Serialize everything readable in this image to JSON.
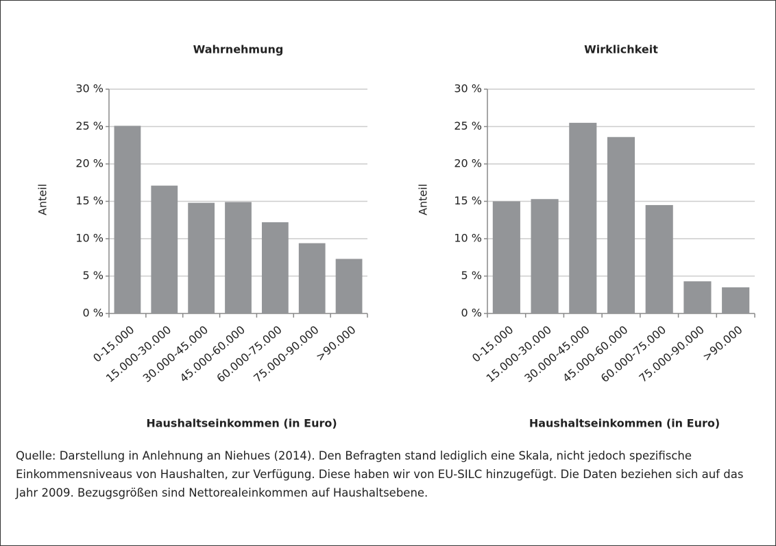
{
  "chart_data": [
    {
      "type": "bar",
      "title": "Wahrnehmung",
      "ylabel": "Anteil",
      "xlabel": "Haushaltseinkommen (in Euro)",
      "categories": [
        "0-15.000",
        "15.000-30.000",
        "30.000-45.000",
        "45.000-60.000",
        "60.000-75.000",
        "75.000-90.000",
        ">90.000"
      ],
      "values": [
        25.1,
        17.1,
        14.8,
        14.9,
        12.2,
        9.4,
        7.3
      ],
      "color": "#939598",
      "ylim": [
        0,
        30
      ],
      "yticks": [
        {
          "value": 0,
          "label": "0 %"
        },
        {
          "value": 5,
          "label": "5 %"
        },
        {
          "value": 10,
          "label": "10 %"
        },
        {
          "value": 15,
          "label": "15 %"
        },
        {
          "value": 20,
          "label": "20 %"
        },
        {
          "value": 25,
          "label": "25 %"
        },
        {
          "value": 30,
          "label": "30 %"
        }
      ],
      "grid": true
    },
    {
      "type": "bar",
      "title": "Wirklichkeit",
      "ylabel": "Anteil",
      "xlabel": "Haushaltseinkommen (in Euro)",
      "categories": [
        "0-15.000",
        "15.000-30.000",
        "30.000-45.000",
        "45.000-60.000",
        "60.000-75.000",
        "75.000-90.000",
        ">90.000"
      ],
      "values": [
        15.0,
        15.3,
        25.5,
        23.6,
        14.5,
        4.3,
        3.5
      ],
      "color": "#939598",
      "ylim": [
        0,
        30
      ],
      "yticks": [
        {
          "value": 0,
          "label": "0 %"
        },
        {
          "value": 5,
          "label": "5 %"
        },
        {
          "value": 10,
          "label": "10 %"
        },
        {
          "value": 15,
          "label": "15 %"
        },
        {
          "value": 20,
          "label": "20 %"
        },
        {
          "value": 25,
          "label": "25 %"
        },
        {
          "value": 30,
          "label": "30 %"
        }
      ],
      "grid": true
    }
  ],
  "caption": "Quelle: Darstellung in Anlehnung an Niehues (2014). Den Befragten stand lediglich eine Skala, nicht jedoch spezifische Einkommensniveaus von Haushalten, zur Verfügung. Diese haben wir von EU-SILC hinzugefügt. Die Daten beziehen sich auf das Jahr 2009. Bezugsgrößen sind Nettorealeinkommen auf Haushaltsebene."
}
